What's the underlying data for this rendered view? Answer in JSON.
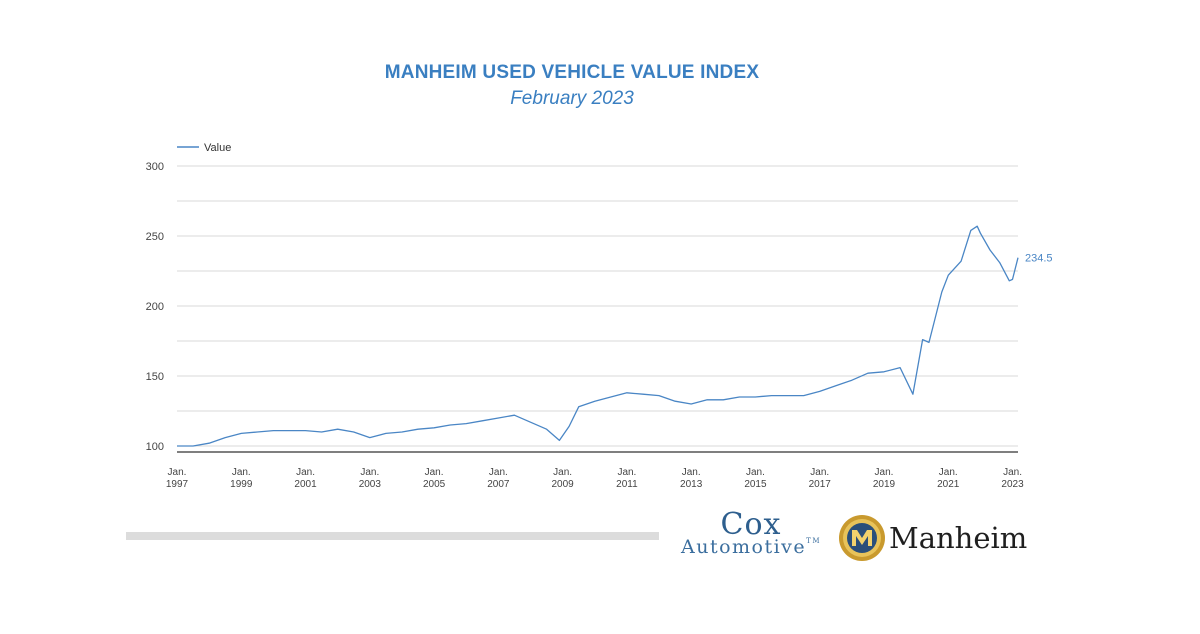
{
  "chart_data": {
    "type": "line",
    "title": "MANHEIM USED VEHICLE VALUE INDEX",
    "subtitle": "February 2023",
    "legend": {
      "position": "top-left",
      "entries": [
        "Value"
      ]
    },
    "grid": true,
    "x_range": [
      1997.0,
      2023.17
    ],
    "ylim": [
      100,
      300
    ],
    "y_ticks": [
      "100",
      "150",
      "200",
      "250",
      "300"
    ],
    "x_ticks": [
      {
        "year": 1997,
        "line1": "Jan.",
        "line2": "1997"
      },
      {
        "year": 1999,
        "line1": "Jan.",
        "line2": "1999"
      },
      {
        "year": 2001,
        "line1": "Jan.",
        "line2": "2001"
      },
      {
        "year": 2003,
        "line1": "Jan.",
        "line2": "2003"
      },
      {
        "year": 2005,
        "line1": "Jan.",
        "line2": "2005"
      },
      {
        "year": 2007,
        "line1": "Jan.",
        "line2": "2007"
      },
      {
        "year": 2009,
        "line1": "Jan.",
        "line2": "2009"
      },
      {
        "year": 2011,
        "line1": "Jan.",
        "line2": "2011"
      },
      {
        "year": 2013,
        "line1": "Jan.",
        "line2": "2013"
      },
      {
        "year": 2015,
        "line1": "Jan.",
        "line2": "2015"
      },
      {
        "year": 2017,
        "line1": "Jan.",
        "line2": "2017"
      },
      {
        "year": 2019,
        "line1": "Jan.",
        "line2": "2019"
      },
      {
        "year": 2021,
        "line1": "Jan.",
        "line2": "2021"
      },
      {
        "year": 2023,
        "line1": "Jan.",
        "line2": "2023"
      }
    ],
    "series": [
      {
        "name": "Value",
        "color": "#4a86c5",
        "end_label": "234.5",
        "x": [
          1997.0,
          1997.5,
          1998.0,
          1998.5,
          1999.0,
          1999.5,
          2000.0,
          2000.5,
          2001.0,
          2001.5,
          2002.0,
          2002.5,
          2003.0,
          2003.5,
          2004.0,
          2004.5,
          2005.0,
          2005.5,
          2006.0,
          2006.5,
          2007.0,
          2007.5,
          2008.0,
          2008.5,
          2008.9,
          2009.2,
          2009.5,
          2010.0,
          2010.5,
          2011.0,
          2011.5,
          2012.0,
          2012.5,
          2013.0,
          2013.5,
          2014.0,
          2014.5,
          2015.0,
          2015.5,
          2016.0,
          2016.5,
          2017.0,
          2017.5,
          2018.0,
          2018.5,
          2019.0,
          2019.5,
          2019.9,
          2020.2,
          2020.4,
          2020.8,
          2021.0,
          2021.4,
          2021.7,
          2021.9,
          2022.0,
          2022.3,
          2022.6,
          2022.9,
          2023.0,
          2023.17
        ],
        "values": [
          100,
          100,
          102,
          106,
          109,
          110,
          111,
          111,
          111,
          110,
          112,
          110,
          106,
          109,
          110,
          112,
          113,
          115,
          116,
          118,
          120,
          122,
          117,
          112,
          104,
          114,
          128,
          132,
          135,
          138,
          137,
          136,
          132,
          130,
          133,
          133,
          135,
          135,
          136,
          136,
          136,
          139,
          143,
          147,
          152,
          153,
          156,
          137,
          176,
          174,
          210,
          222,
          232,
          254,
          257,
          252,
          240,
          231,
          218,
          219,
          234.5
        ]
      }
    ]
  },
  "logos": {
    "cox_top": "Cox",
    "cox_bottom": "Automotive",
    "cox_tm": "TM",
    "manheim_text": "Manheim"
  }
}
